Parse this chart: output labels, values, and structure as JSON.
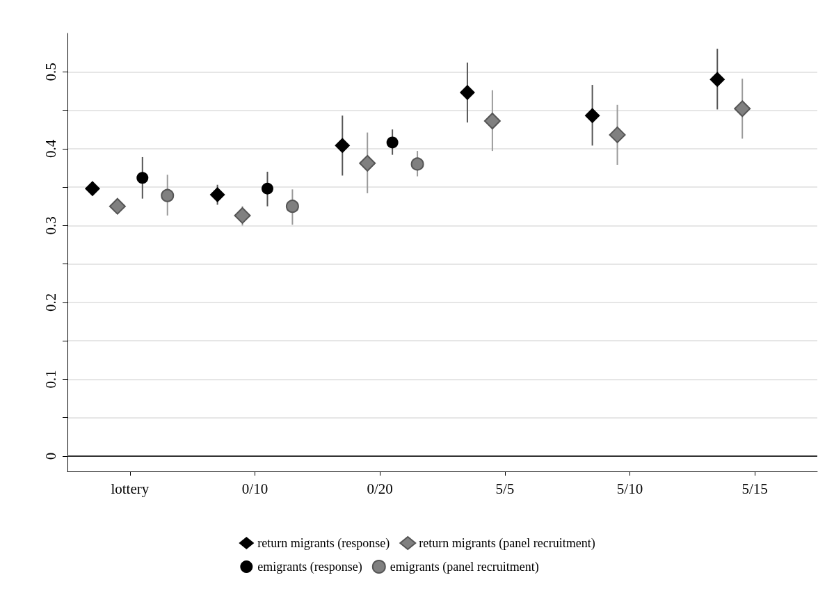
{
  "chart_data": {
    "type": "scatter",
    "categories": [
      "lottery",
      "0/10",
      "0/20",
      "5/5",
      "5/10",
      "5/15"
    ],
    "series": [
      {
        "name": "return migrants (response)",
        "color": "#000000",
        "marker": "diamond",
        "values": [
          0.348,
          0.34,
          0.404,
          0.473,
          0.443,
          0.49
        ],
        "errors": [
          [
            0.34,
            0.356
          ],
          [
            0.327,
            0.353
          ],
          [
            0.365,
            0.443
          ],
          [
            0.434,
            0.512
          ],
          [
            0.404,
            0.483
          ],
          [
            0.451,
            0.53
          ]
        ]
      },
      {
        "name": "return migrants (panel recruitment)",
        "color": "#808080",
        "marker": "diamond",
        "values": [
          0.325,
          0.313,
          0.381,
          0.436,
          0.418,
          0.452
        ],
        "errors": [
          [
            0.318,
            0.332
          ],
          [
            0.3,
            0.325
          ],
          [
            0.342,
            0.421
          ],
          [
            0.397,
            0.476
          ],
          [
            0.379,
            0.457
          ],
          [
            0.413,
            0.491
          ]
        ]
      },
      {
        "name": "emigrants (response)",
        "color": "#000000",
        "marker": "circle",
        "values": [
          0.362,
          0.348,
          0.408,
          null,
          null,
          null
        ],
        "errors": [
          [
            0.335,
            0.389
          ],
          [
            0.325,
            0.37
          ],
          [
            0.392,
            0.425
          ],
          null,
          null,
          null
        ]
      },
      {
        "name": "emigrants (panel recruitment)",
        "color": "#808080",
        "marker": "circle",
        "values": [
          0.339,
          0.325,
          0.38,
          null,
          null,
          null
        ],
        "errors": [
          [
            0.313,
            0.366
          ],
          [
            0.301,
            0.347
          ],
          [
            0.364,
            0.397
          ],
          null,
          null,
          null
        ]
      }
    ],
    "ylim": [
      -0.02,
      0.55
    ],
    "yticks": [
      0,
      {
        "value": 0.05,
        "label": null
      },
      0.1,
      {
        "value": 0.15,
        "label": null
      },
      0.2,
      {
        "value": 0.25,
        "label": null
      },
      0.3,
      {
        "value": 0.35,
        "label": null
      },
      0.4,
      {
        "value": 0.45,
        "label": null
      },
      0.5
    ],
    "grid": "y",
    "legend": "bottom",
    "ref_lines": [
      {
        "axis": "y",
        "value": 0,
        "color": "#333333"
      }
    ]
  }
}
